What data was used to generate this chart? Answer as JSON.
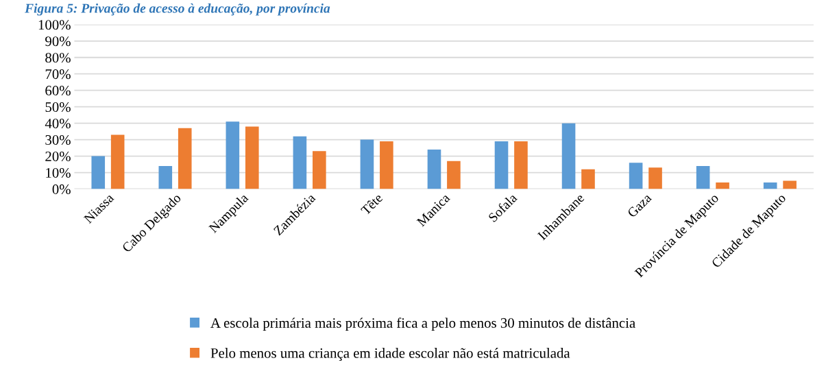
{
  "chart_data": {
    "type": "bar",
    "title": "Figura 5: Privação de acesso à educação, por província",
    "categories": [
      "Niassa",
      "Cabo Delgado",
      "Nampula",
      "Zambézia",
      "Tête",
      "Manica",
      "Sofala",
      "Inhambane",
      "Gaza",
      "Província de Maputo",
      "Cidade de Maputo"
    ],
    "series": [
      {
        "name": "A escola primária mais próxima fica a pelo menos 30 minutos de distância",
        "color": "#5b9bd5",
        "values": [
          20,
          14,
          41,
          32,
          30,
          24,
          29,
          40,
          16,
          14,
          4
        ]
      },
      {
        "name": "Pelo menos uma criança em idade escolar não está matriculada",
        "color": "#ed7d31",
        "values": [
          33,
          37,
          38,
          23,
          29,
          17,
          29,
          12,
          13,
          4,
          5
        ]
      }
    ],
    "ylim": [
      0,
      100
    ],
    "yticks": [
      {
        "value": 0,
        "label": "0%"
      },
      {
        "value": 10,
        "label": "10%"
      },
      {
        "value": 20,
        "label": "20%"
      },
      {
        "value": 30,
        "label": "30%"
      },
      {
        "value": 40,
        "label": "40%"
      },
      {
        "value": 50,
        "label": "50%"
      },
      {
        "value": 60,
        "label": "60%"
      },
      {
        "value": 70,
        "label": "70%"
      },
      {
        "value": 80,
        "label": "80%"
      },
      {
        "value": 90,
        "label": "90%"
      },
      {
        "value": 100,
        "label": "100%"
      }
    ],
    "grid": "y",
    "legend": "bottom"
  }
}
